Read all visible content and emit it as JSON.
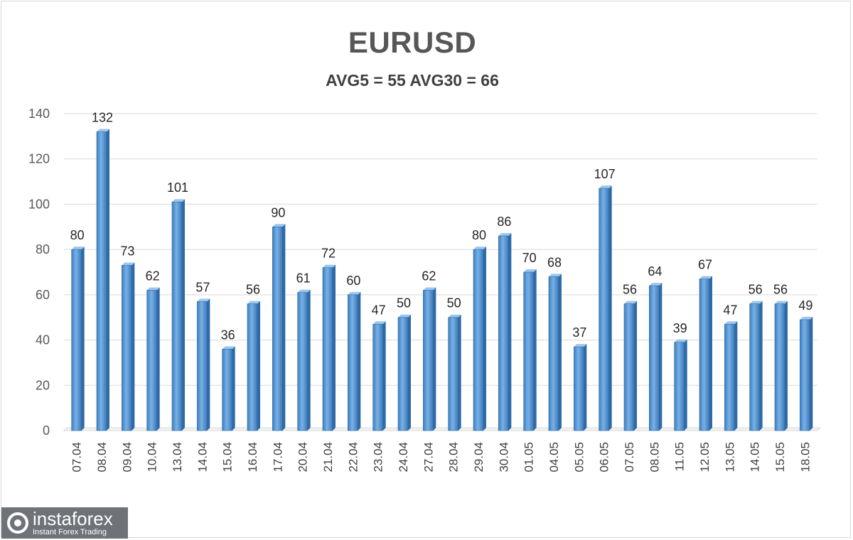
{
  "chart_data": {
    "type": "bar",
    "title": "EURUSD",
    "subtitle": "AVG5 = 55 AVG30 = 66",
    "xlabel": "",
    "ylabel": "",
    "ylim": [
      0,
      140
    ],
    "yticks": [
      0,
      20,
      40,
      60,
      80,
      100,
      120,
      140
    ],
    "grid": true,
    "legend": "none",
    "bar_color": "#5b9bd5",
    "categories": [
      "07.04",
      "08.04",
      "09.04",
      "10.04",
      "13.04",
      "14.04",
      "15.04",
      "16.04",
      "17.04",
      "20.04",
      "21.04",
      "22.04",
      "23.04",
      "24.04",
      "27.04",
      "28.04",
      "29.04",
      "30.04",
      "01.05",
      "04.05",
      "05.05",
      "06.05",
      "07.05",
      "08.05",
      "11.05",
      "12.05",
      "13.05",
      "14.05",
      "15.05",
      "18.05"
    ],
    "values": [
      80,
      132,
      73,
      62,
      101,
      57,
      36,
      56,
      90,
      61,
      72,
      60,
      47,
      50,
      62,
      50,
      80,
      86,
      70,
      68,
      37,
      107,
      56,
      64,
      39,
      67,
      47,
      56,
      56,
      49
    ]
  },
  "logo": {
    "name": "instaforex",
    "tagline": "Instant Forex Trading"
  }
}
